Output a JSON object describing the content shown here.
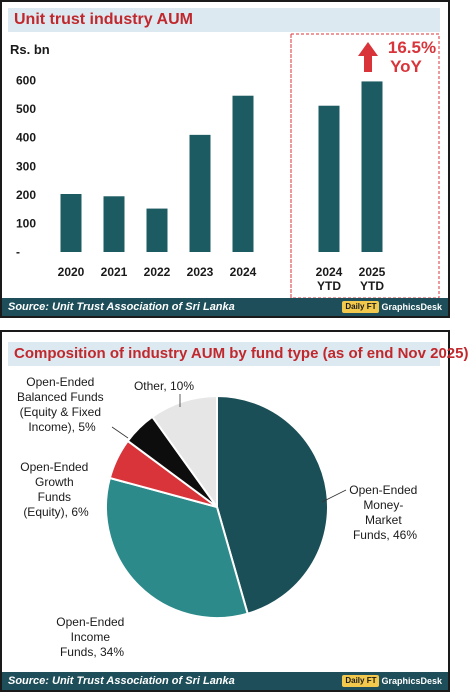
{
  "top_chart": {
    "title": "Unit trust industry AUM",
    "source": "Source: Unit Trust Association of Sri Lanka",
    "brand_logo": "Daily FT",
    "brand_text": "GraphicsDesk",
    "yoy_value": "16.5%",
    "yoy_label": "YoY",
    "arrow_color": "#d8343a"
  },
  "bottom_chart": {
    "title": "Composition of industry AUM by fund type (as of end Nov 2025)",
    "source": "Source: Unit Trust Association of Sri Lanka",
    "brand_logo": "Daily FT",
    "brand_text": "GraphicsDesk"
  },
  "chart_data": [
    {
      "type": "bar",
      "title": "Unit trust industry AUM",
      "ylabel": "Rs. bn",
      "ylim": [
        0,
        700
      ],
      "yticks": [
        "-",
        "100",
        "200",
        "300",
        "400",
        "500",
        "600"
      ],
      "categories": [
        "2020",
        "2021",
        "2022",
        "2023",
        "2024",
        "2024\nYTD",
        "2025\nYTD"
      ],
      "values": [
        203,
        195,
        152,
        410,
        547,
        512,
        597
      ],
      "bar_color": "#1d5b63",
      "grid": false,
      "legend": "none"
    },
    {
      "type": "pie",
      "title": "Composition of industry AUM by fund type (as of end Nov 2025)",
      "slices": [
        {
          "label": "Open-Ended Money-Market Funds, 46%",
          "value": 46,
          "color": "#1b4f57"
        },
        {
          "label": "Open-Ended Income Funds, 34%",
          "value": 34,
          "color": "#2c8a8a"
        },
        {
          "label": "Open-Ended Growth Funds (Equity), 6%",
          "value": 6,
          "color": "#d8343a"
        },
        {
          "label": "Open-Ended Balanced Funds (Equity & Fixed Income), 5%",
          "value": 5,
          "color": "#0d0d0d"
        },
        {
          "label": "Other, 10%",
          "value": 10,
          "color": "#e6e6e6"
        }
      ]
    }
  ]
}
